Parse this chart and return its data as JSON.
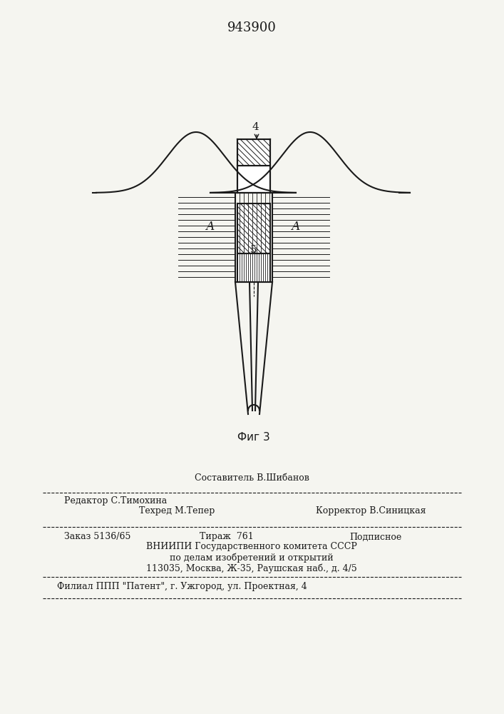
{
  "patent_number": "943900",
  "fig_label": "Фиг 3",
  "label_4": "4",
  "label_5": "5",
  "label_A_left": "А",
  "label_A_right": "А",
  "bg_color": "#f5f5f0",
  "line_color": "#1a1a1a",
  "hatch_color": "#1a1a1a",
  "text_color": "#1a1a1a",
  "footer_line1_left": "Редактор С.Тимохина",
  "footer_line1_center": "Составитель В.Шибанов",
  "footer_line1_right": "",
  "footer_line2_left": "",
  "footer_line2_center": "Техред М.Тепер",
  "footer_line2_right": "Корректор В.Синицкая",
  "footer_line3": "Заказ 5136/65          Тираж  761          Подписное",
  "footer_line4": "ВНИИПИ Государственного комитета СССР",
  "footer_line5": "по делам изобретений и открытий",
  "footer_line6": "113035, Москва, Ж-35, Раушская наб., д. 4/5",
  "footer_line7": "Филиал ППП \"Патент\", г. Ужгород, ул. Проектная, 4"
}
